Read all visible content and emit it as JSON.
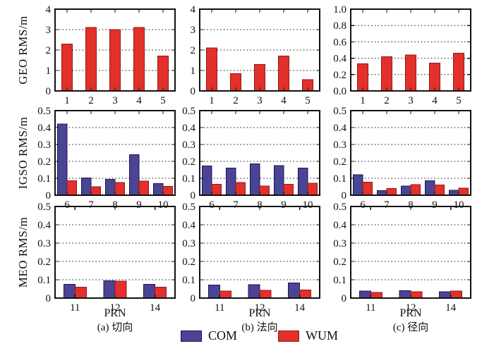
{
  "xlabel": "PRN",
  "captions": [
    "(a) 切向",
    "(b) 法向",
    "(c) 径向"
  ],
  "row_labels": [
    "GEO RMS/m",
    "IGSO RMS/m",
    "MEO RMS/m"
  ],
  "legend": {
    "items": [
      {
        "label": "COM",
        "color": "#4a4496",
        "edge": "#1c1850"
      },
      {
        "label": "WUM",
        "color": "#e3302b",
        "edge": "#8f1a17"
      }
    ]
  },
  "axis_color": "#111111",
  "grid_style": "dotted",
  "chart_data": [
    {
      "id": "geo-tangential",
      "type": "bar",
      "row": 0,
      "col": 0,
      "ylabel": "GEO RMS/m",
      "xlabel": "",
      "ylim": [
        0,
        4
      ],
      "yticks": [
        0,
        1,
        2,
        3,
        4
      ],
      "ytick_labels": [
        "0",
        "1",
        "2",
        "3",
        "4"
      ],
      "categories": [
        "1",
        "2",
        "3",
        "4",
        "5"
      ],
      "series": [
        {
          "name": "WUM",
          "values": [
            2.3,
            3.1,
            3.0,
            3.1,
            1.7
          ]
        }
      ]
    },
    {
      "id": "geo-normal",
      "type": "bar",
      "row": 0,
      "col": 1,
      "ylabel": "",
      "xlabel": "",
      "ylim": [
        0,
        4
      ],
      "yticks": [
        0,
        1,
        2,
        3,
        4
      ],
      "ytick_labels": [
        "0",
        "1",
        "2",
        "3",
        "4"
      ],
      "categories": [
        "1",
        "2",
        "3",
        "4",
        "5"
      ],
      "series": [
        {
          "name": "WUM",
          "values": [
            2.1,
            0.85,
            1.3,
            1.7,
            0.55
          ]
        }
      ]
    },
    {
      "id": "geo-radial",
      "type": "bar",
      "row": 0,
      "col": 2,
      "ylabel": "",
      "xlabel": "",
      "ylim": [
        0,
        1.0
      ],
      "yticks": [
        0,
        0.2,
        0.4,
        0.6,
        0.8,
        1.0
      ],
      "ytick_labels": [
        "0.0",
        "0.2",
        "0.4",
        "0.6",
        "0.8",
        "1.0"
      ],
      "categories": [
        "1",
        "2",
        "3",
        "4",
        "5"
      ],
      "series": [
        {
          "name": "WUM",
          "values": [
            0.33,
            0.42,
            0.44,
            0.34,
            0.46
          ]
        }
      ]
    },
    {
      "id": "igso-tangential",
      "type": "bar",
      "row": 1,
      "col": 0,
      "ylabel": "IGSO RMS/m",
      "xlabel": "",
      "ylim": [
        0,
        0.5
      ],
      "yticks": [
        0,
        0.1,
        0.2,
        0.3,
        0.4,
        0.5
      ],
      "ytick_labels": [
        "0",
        "0.1",
        "0.2",
        "0.3",
        "0.4",
        "0.5"
      ],
      "categories": [
        "6",
        "7",
        "8",
        "9",
        "10"
      ],
      "series": [
        {
          "name": "COM",
          "values": [
            0.42,
            0.103,
            0.094,
            0.24,
            0.068
          ]
        },
        {
          "name": "WUM",
          "values": [
            0.086,
            0.051,
            0.075,
            0.083,
            0.053
          ]
        }
      ]
    },
    {
      "id": "igso-normal",
      "type": "bar",
      "row": 1,
      "col": 1,
      "ylabel": "",
      "xlabel": "",
      "ylim": [
        0,
        0.5
      ],
      "yticks": [
        0,
        0.1,
        0.2,
        0.3,
        0.4,
        0.5
      ],
      "ytick_labels": [
        "0",
        "0.1",
        "0.2",
        "0.3",
        "0.4",
        "0.5"
      ],
      "categories": [
        "6",
        "7",
        "8",
        "9",
        "10"
      ],
      "series": [
        {
          "name": "COM",
          "values": [
            0.172,
            0.16,
            0.185,
            0.175,
            0.16
          ]
        },
        {
          "name": "WUM",
          "values": [
            0.065,
            0.075,
            0.055,
            0.065,
            0.07
          ]
        }
      ]
    },
    {
      "id": "igso-radial",
      "type": "bar",
      "row": 1,
      "col": 2,
      "ylabel": "",
      "xlabel": "",
      "ylim": [
        0,
        0.5
      ],
      "yticks": [
        0,
        0.1,
        0.2,
        0.3,
        0.4,
        0.5
      ],
      "ytick_labels": [
        "0",
        "0.1",
        "0.2",
        "0.3",
        "0.4",
        "0.5"
      ],
      "categories": [
        "6",
        "7",
        "8",
        "9",
        "10"
      ],
      "series": [
        {
          "name": "COM",
          "values": [
            0.12,
            0.028,
            0.055,
            0.086,
            0.03
          ]
        },
        {
          "name": "WUM",
          "values": [
            0.078,
            0.04,
            0.062,
            0.061,
            0.042
          ]
        }
      ]
    },
    {
      "id": "meo-tangential",
      "type": "bar",
      "row": 2,
      "col": 0,
      "ylabel": "MEO RMS/m",
      "xlabel": "PRN",
      "ylim": [
        0,
        0.5
      ],
      "yticks": [
        0,
        0.1,
        0.2,
        0.3,
        0.4,
        0.5
      ],
      "ytick_labels": [
        "0",
        "0.1",
        "0.2",
        "0.3",
        "0.4",
        "0.5"
      ],
      "categories": [
        "11",
        "12",
        "14"
      ],
      "series": [
        {
          "name": "COM",
          "values": [
            0.075,
            0.095,
            0.075
          ]
        },
        {
          "name": "WUM",
          "values": [
            0.06,
            0.092,
            0.06
          ]
        }
      ]
    },
    {
      "id": "meo-normal",
      "type": "bar",
      "row": 2,
      "col": 1,
      "ylabel": "",
      "xlabel": "PRN",
      "ylim": [
        0,
        0.5
      ],
      "yticks": [
        0,
        0.1,
        0.2,
        0.3,
        0.4,
        0.5
      ],
      "ytick_labels": [
        "0",
        "0.1",
        "0.2",
        "0.3",
        "0.4",
        "0.5"
      ],
      "categories": [
        "11",
        "12",
        "14"
      ],
      "series": [
        {
          "name": "COM",
          "values": [
            0.072,
            0.073,
            0.082
          ]
        },
        {
          "name": "WUM",
          "values": [
            0.038,
            0.043,
            0.045
          ]
        }
      ]
    },
    {
      "id": "meo-radial",
      "type": "bar",
      "row": 2,
      "col": 2,
      "ylabel": "",
      "xlabel": "PRN",
      "ylim": [
        0,
        0.5
      ],
      "yticks": [
        0,
        0.1,
        0.2,
        0.3,
        0.4,
        0.5
      ],
      "ytick_labels": [
        "0",
        "0.1",
        "0.2",
        "0.3",
        "0.4",
        "0.5"
      ],
      "categories": [
        "11",
        "12",
        "14"
      ],
      "series": [
        {
          "name": "COM",
          "values": [
            0.038,
            0.04,
            0.034
          ]
        },
        {
          "name": "WUM",
          "values": [
            0.03,
            0.034,
            0.038
          ]
        }
      ]
    }
  ]
}
